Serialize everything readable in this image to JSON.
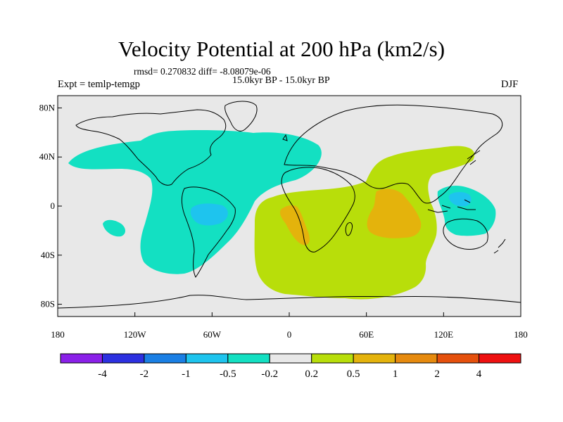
{
  "title": "Velocity Potential at 200 hPa (km2/s)",
  "subtitle": "rmsd= 0.270832 diff= -8.08079e-06",
  "period": "15.0kyr BP - 15.0kyr BP",
  "expt_label": "Expt = temlp-temgp",
  "season": "DJF",
  "map": {
    "lat_ticks": [
      {
        "label": "80N",
        "lat": 80
      },
      {
        "label": "40N",
        "lat": 40
      },
      {
        "label": "0",
        "lat": 0
      },
      {
        "label": "40S",
        "lat": -40
      },
      {
        "label": "80S",
        "lat": -80
      }
    ],
    "lon_ticks": [
      {
        "label": "180",
        "lon": -180
      },
      {
        "label": "120W",
        "lon": -120
      },
      {
        "label": "60W",
        "lon": -60
      },
      {
        "label": "0",
        "lon": 0
      },
      {
        "label": "60E",
        "lon": 60
      },
      {
        "label": "120E",
        "lon": 120
      },
      {
        "label": "180",
        "lon": 180
      }
    ],
    "background_color": "#e8e8e8",
    "regions": [
      {
        "name": "western-hemisphere-negative",
        "level": "-0.5 to -0.2",
        "color": "#13e0c2"
      },
      {
        "name": "south-america-negative-core",
        "level": "-1 to -0.5",
        "color": "#1ec4ee"
      },
      {
        "name": "west-pacific-negative",
        "level": "-0.5 to -0.2",
        "color": "#13e0c2"
      },
      {
        "name": "philippines-negative-core",
        "level": "-1 to -0.5",
        "color": "#1ec4ee"
      },
      {
        "name": "eastern-hemisphere-positive",
        "level": "0.2 to 0.5",
        "color": "#b8de0a"
      },
      {
        "name": "africa-positive-core",
        "level": "0.5 to 1",
        "color": "#e4b30c"
      },
      {
        "name": "indian-ocean-positive-core",
        "level": "0.5 to 1",
        "color": "#e4b30c"
      }
    ]
  },
  "colorbar": {
    "colors": [
      "#8a20e8",
      "#2c30e0",
      "#1a7fe4",
      "#1ec4ee",
      "#13e0c2",
      "#e8e8e8",
      "#b8de0a",
      "#e4b30c",
      "#e68a0e",
      "#e5500c",
      "#ee1010"
    ],
    "labels": [
      "-4",
      "-2",
      "-1",
      "-0.5",
      "-0.2",
      "0.2",
      "0.5",
      "1",
      "2",
      "4"
    ]
  }
}
